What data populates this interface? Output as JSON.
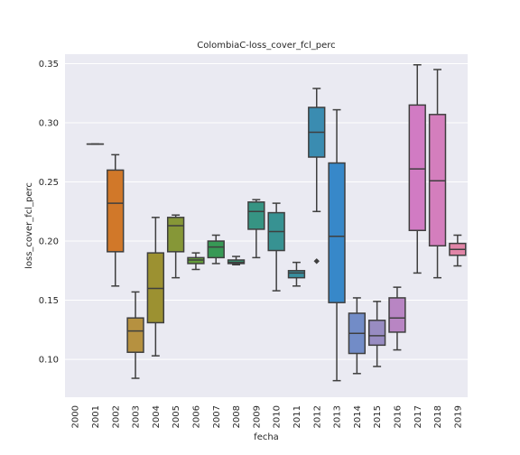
{
  "chart_data": {
    "type": "box",
    "title": "ColombiaC-loss_cover_fcl_perc",
    "xlabel": "fecha",
    "ylabel": "loss_cover_fcl_perc",
    "ylim": [
      0.068,
      0.358
    ],
    "yticks": [
      0.1,
      0.15,
      0.2,
      0.25,
      0.3,
      0.35
    ],
    "ytick_labels": [
      "0.10",
      "0.15",
      "0.20",
      "0.25",
      "0.30",
      "0.35"
    ],
    "grid": true,
    "categories": [
      "2000",
      "2001",
      "2002",
      "2003",
      "2004",
      "2005",
      "2006",
      "2007",
      "2008",
      "2009",
      "2010",
      "2011",
      "2012",
      "2013",
      "2014",
      "2015",
      "2016",
      "2017",
      "2018",
      "2019"
    ],
    "boxes": [
      null,
      {
        "q1": 0.282,
        "median": 0.282,
        "q3": 0.282,
        "whislo": 0.282,
        "whishi": 0.282,
        "fliers": [],
        "color": "#3274a1"
      },
      {
        "q1": 0.191,
        "median": 0.232,
        "q3": 0.26,
        "whislo": 0.162,
        "whishi": 0.273,
        "fliers": [],
        "color": "#e1812c"
      },
      {
        "q1": 0.106,
        "median": 0.124,
        "q3": 0.135,
        "whislo": 0.084,
        "whishi": 0.157,
        "fliers": [],
        "color": "#c49c45"
      },
      {
        "q1": 0.131,
        "median": 0.16,
        "q3": 0.19,
        "whislo": 0.103,
        "whishi": 0.22,
        "fliers": [],
        "color": "#a89c35"
      },
      {
        "q1": 0.191,
        "median": 0.213,
        "q3": 0.22,
        "whislo": 0.169,
        "whishi": 0.222,
        "fliers": [],
        "color": "#90a23b"
      },
      {
        "q1": 0.181,
        "median": 0.184,
        "q3": 0.186,
        "whislo": 0.176,
        "whishi": 0.19,
        "fliers": [],
        "color": "#6aa83e"
      },
      {
        "q1": 0.186,
        "median": 0.195,
        "q3": 0.2,
        "whislo": 0.181,
        "whishi": 0.205,
        "fliers": [],
        "color": "#3ba45b"
      },
      {
        "q1": 0.181,
        "median": 0.182,
        "q3": 0.184,
        "whislo": 0.18,
        "whishi": 0.187,
        "fliers": [],
        "color": "#3aa17a"
      },
      {
        "q1": 0.21,
        "median": 0.225,
        "q3": 0.233,
        "whislo": 0.186,
        "whishi": 0.235,
        "fliers": [],
        "color": "#3a9f8d"
      },
      {
        "q1": 0.192,
        "median": 0.208,
        "q3": 0.224,
        "whislo": 0.158,
        "whishi": 0.232,
        "fliers": [],
        "color": "#3b9d9d"
      },
      {
        "q1": 0.169,
        "median": 0.173,
        "q3": 0.175,
        "whislo": 0.162,
        "whishi": 0.182,
        "fliers": [],
        "color": "#3c9aab"
      },
      {
        "q1": 0.271,
        "median": 0.292,
        "q3": 0.313,
        "whislo": 0.225,
        "whishi": 0.329,
        "fliers": [
          0.183
        ],
        "color": "#3e97be"
      },
      {
        "q1": 0.148,
        "median": 0.204,
        "q3": 0.266,
        "whislo": 0.082,
        "whishi": 0.311,
        "fliers": [],
        "color": "#3b92d8"
      },
      {
        "q1": 0.105,
        "median": 0.122,
        "q3": 0.139,
        "whislo": 0.088,
        "whishi": 0.152,
        "fliers": [],
        "color": "#7b97d6"
      },
      {
        "q1": 0.112,
        "median": 0.12,
        "q3": 0.133,
        "whislo": 0.094,
        "whishi": 0.149,
        "fliers": [],
        "color": "#a397d1"
      },
      {
        "q1": 0.123,
        "median": 0.135,
        "q3": 0.152,
        "whislo": 0.108,
        "whishi": 0.161,
        "fliers": [],
        "color": "#c68fd2"
      },
      {
        "q1": 0.209,
        "median": 0.261,
        "q3": 0.315,
        "whislo": 0.173,
        "whishi": 0.349,
        "fliers": [],
        "color": "#e184d2"
      },
      {
        "q1": 0.196,
        "median": 0.251,
        "q3": 0.307,
        "whislo": 0.169,
        "whishi": 0.345,
        "fliers": [],
        "color": "#e487cb"
      },
      {
        "q1": 0.188,
        "median": 0.193,
        "q3": 0.198,
        "whislo": 0.179,
        "whishi": 0.205,
        "fliers": [],
        "color": "#f28fb4"
      }
    ]
  }
}
